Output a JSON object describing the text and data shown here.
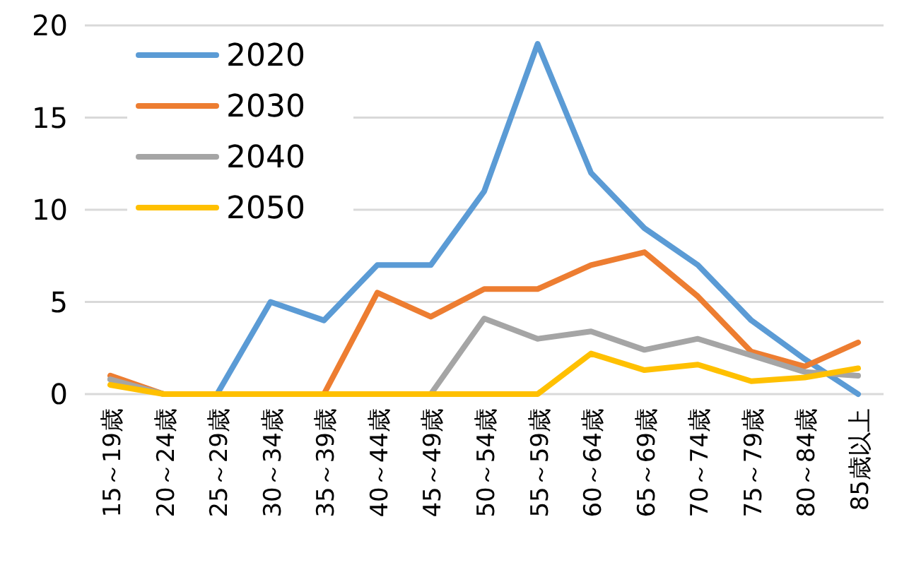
{
  "chart_data": {
    "type": "line",
    "categories": [
      "15～19歳",
      "20～24歳",
      "25～29歳",
      "30～34歳",
      "35～39歳",
      "40～44歳",
      "45～49歳",
      "50～54歳",
      "55～59歳",
      "60～64歳",
      "65～69歳",
      "70～74歳",
      "75～79歳",
      "80～84歳",
      "85歳以上"
    ],
    "series": [
      {
        "name": "2020",
        "color": "#5b9bd5",
        "values": [
          0.8,
          0,
          0,
          5,
          4,
          7,
          7,
          11,
          19,
          12,
          9,
          7,
          4,
          1.9,
          0
        ]
      },
      {
        "name": "2030",
        "color": "#ed7d31",
        "values": [
          1,
          0,
          0,
          0,
          0,
          5.5,
          4.2,
          5.7,
          5.7,
          7,
          7.7,
          5.3,
          2.3,
          1.5,
          2.8
        ]
      },
      {
        "name": "2040",
        "color": "#a5a5a5",
        "values": [
          0.8,
          0,
          0,
          0,
          0,
          0,
          0,
          4.1,
          3,
          3.4,
          2.4,
          3,
          2.1,
          1.2,
          1
        ]
      },
      {
        "name": "2050",
        "color": "#ffc000",
        "values": [
          0.5,
          0,
          0,
          0,
          0,
          0,
          0,
          0,
          0,
          2.2,
          1.3,
          1.6,
          0.7,
          0.9,
          1.4
        ]
      }
    ],
    "ylim": [
      0,
      20
    ],
    "yticks": [
      0,
      5,
      10,
      15,
      20
    ],
    "grid": "y",
    "legend": "top left",
    "marker": "none",
    "line_style": "solid"
  }
}
